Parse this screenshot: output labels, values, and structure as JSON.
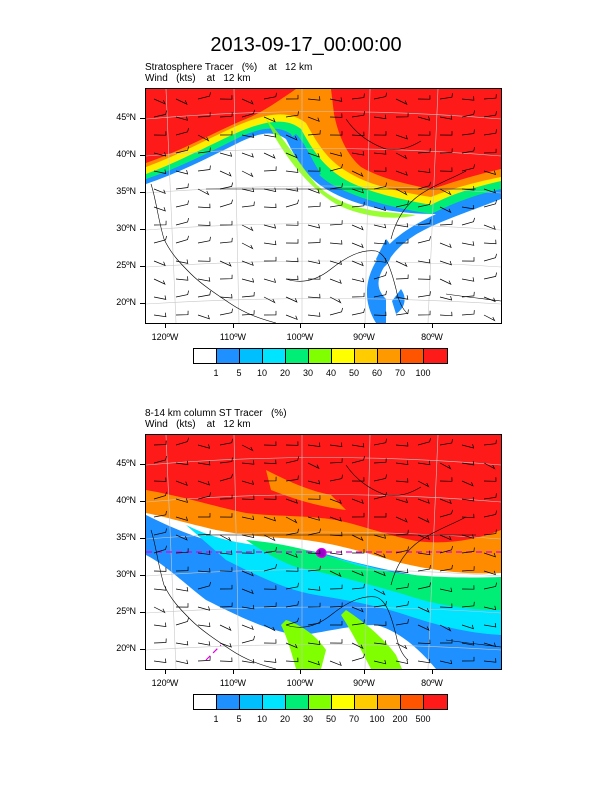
{
  "title": "2013-09-17_00:00:00",
  "panels": [
    {
      "line1": "Stratosphere Tracer   (%)    at   12 km",
      "line2": "Wind   (kts)    at   12 km",
      "lat_labels": [
        "45ºN",
        "40ºN",
        "35ºN",
        "30ºN",
        "25ºN",
        "20ºN"
      ],
      "lon_labels": [
        "120ºW",
        "110ºW",
        "100ºW",
        "90ºW",
        "80ºW"
      ],
      "colorbar_labels": [
        "1",
        "5",
        "10",
        "20",
        "30",
        "40",
        "50",
        "60",
        "70",
        "100"
      ]
    },
    {
      "line1": "8-14 km column ST Tracer   (%)",
      "line2": "Wind   (kts)    at   12 km",
      "lat_labels": [
        "45ºN",
        "40ºN",
        "35ºN",
        "30ºN",
        "25ºN",
        "20ºN"
      ],
      "lon_labels": [
        "120ºW",
        "110ºW",
        "100ºW",
        "90ºW",
        "80ºW"
      ],
      "colorbar_labels": [
        "1",
        "5",
        "10",
        "20",
        "30",
        "50",
        "70",
        "100",
        "200",
        "500"
      ]
    }
  ],
  "colorbar_colors": [
    "#ffffff",
    "#1e90ff",
    "#00bfff",
    "#00e5ff",
    "#00ee76",
    "#7fff00",
    "#ffff00",
    "#ffcc00",
    "#ff9900",
    "#ff5500",
    "#ff1a1a"
  ]
}
